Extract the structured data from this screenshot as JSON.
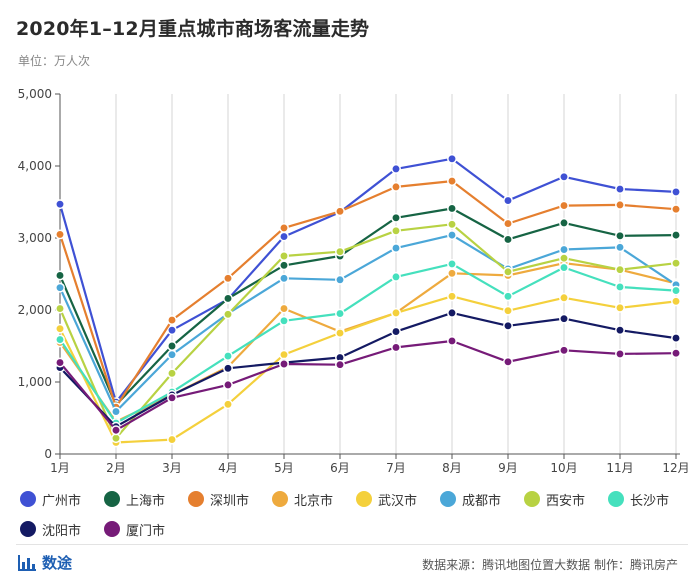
{
  "page": {
    "title": "2020年1–12月重点城市商场客流量走势",
    "unit": "单位：万人次",
    "brand": "数途",
    "source": "数据来源：腾讯地图位置大数据  制作：腾讯房产"
  },
  "chart_data": {
    "type": "line",
    "title": "2020年1–12月重点城市商场客流量走势",
    "ylabel": "单位：万人次",
    "xlabel": "",
    "categories": [
      "1月",
      "2月",
      "3月",
      "4月",
      "5月",
      "6月",
      "7月",
      "8月",
      "9月",
      "10月",
      "11月",
      "12月"
    ],
    "ylim": [
      0,
      5000
    ],
    "yticks": [
      "0",
      "1,000",
      "2,000",
      "3,000",
      "4,000",
      "5,000"
    ],
    "grid": "vertical",
    "legend_position": "bottom",
    "series": [
      {
        "name": "广州市",
        "color": "#3f51d4",
        "values": [
          3470,
          720,
          1720,
          2150,
          3020,
          3360,
          3960,
          4100,
          3520,
          3850,
          3680,
          3640
        ]
      },
      {
        "name": "上海市",
        "color": "#166444",
        "values": [
          2480,
          680,
          1500,
          2160,
          2620,
          2750,
          3280,
          3410,
          2980,
          3210,
          3030,
          3040
        ]
      },
      {
        "name": "深圳市",
        "color": "#e57f2f",
        "values": [
          3050,
          650,
          1860,
          2440,
          3140,
          3370,
          3710,
          3790,
          3200,
          3450,
          3460,
          3400
        ]
      },
      {
        "name": "北京市",
        "color": "#eeaa3e",
        "values": [
          1550,
          450,
          820,
          1210,
          2020,
          1700,
          1960,
          2510,
          2480,
          2650,
          2560,
          2370
        ]
      },
      {
        "name": "武汉市",
        "color": "#f4d03c",
        "values": [
          1740,
          160,
          200,
          690,
          1380,
          1680,
          1960,
          2190,
          1990,
          2170,
          2030,
          2120
        ]
      },
      {
        "name": "成都市",
        "color": "#4ba7d8",
        "values": [
          2310,
          590,
          1380,
          1950,
          2440,
          2420,
          2860,
          3040,
          2570,
          2840,
          2870,
          2350
        ]
      },
      {
        "name": "西安市",
        "color": "#b8d243",
        "values": [
          2020,
          220,
          1120,
          1940,
          2750,
          2810,
          3100,
          3190,
          2530,
          2720,
          2560,
          2650
        ]
      },
      {
        "name": "长沙市",
        "color": "#45e0bd",
        "values": [
          1590,
          430,
          860,
          1360,
          1850,
          1950,
          2460,
          2640,
          2190,
          2590,
          2320,
          2270
        ]
      },
      {
        "name": "沈阳市",
        "color": "#141a63",
        "values": [
          1200,
          380,
          820,
          1190,
          1270,
          1340,
          1700,
          1960,
          1780,
          1880,
          1720,
          1610
        ]
      },
      {
        "name": "厦门市",
        "color": "#761b78",
        "values": [
          1270,
          330,
          780,
          960,
          1250,
          1240,
          1480,
          1570,
          1280,
          1440,
          1390,
          1400
        ]
      }
    ]
  }
}
